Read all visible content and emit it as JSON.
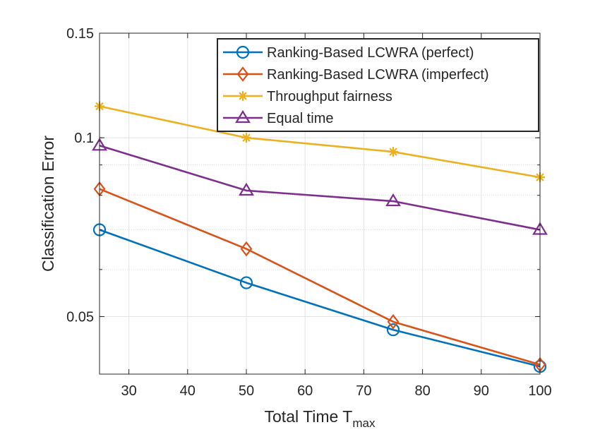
{
  "chart_data": {
    "type": "line",
    "title": "",
    "xlabel": "Total Time T",
    "xlabel_subscript": "max",
    "ylabel": "Classification Error",
    "x": [
      25,
      50,
      75,
      100
    ],
    "xlim": [
      25,
      100
    ],
    "ylim": [
      0.04,
      0.15
    ],
    "yscale": "log",
    "grid": true,
    "minor_grid": true,
    "legend_position": "top-right",
    "xticks": [
      30,
      40,
      50,
      60,
      70,
      80,
      90,
      100
    ],
    "xtick_labels": [
      "30",
      "40",
      "50",
      "60",
      "70",
      "80",
      "90",
      "100"
    ],
    "yticks": [
      0.05,
      0.1,
      0.15
    ],
    "ytick_labels": [
      "0.05",
      "0.1",
      "0.15"
    ],
    "series": [
      {
        "name": "Ranking-Based LCWRA (perfect)",
        "marker": "circle",
        "color": "#0072BD",
        "values": [
          0.07,
          0.057,
          0.0475,
          0.0412
        ]
      },
      {
        "name": "Ranking-Based LCWRA (imperfect)",
        "marker": "diamond",
        "color": "#D95319",
        "values": [
          0.082,
          0.065,
          0.049,
          0.0415
        ]
      },
      {
        "name": "Throughput fairness",
        "marker": "asterisk",
        "color": "#EDB120",
        "values": [
          0.113,
          0.1,
          0.0947,
          0.0858
        ]
      },
      {
        "name": "Equal time",
        "marker": "triangle",
        "color": "#7E2F8E",
        "values": [
          0.097,
          0.0815,
          0.0782,
          0.07
        ]
      }
    ]
  }
}
